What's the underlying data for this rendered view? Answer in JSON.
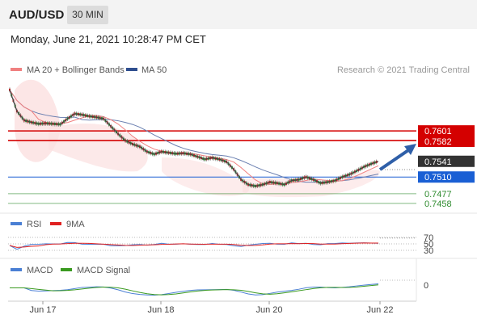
{
  "header": {
    "symbol": "AUD/USD",
    "timeframe": "30 MIN"
  },
  "datetime": "Monday, June 21, 2021 10:28:47 PM CET",
  "main_legend": {
    "ma20": "MA 20 + Bollinger Bands",
    "ma50": "MA 50",
    "credit": "Research © 2021 Trading Central",
    "ma20_color": "#f08080",
    "ma50_color": "#2f4f8f"
  },
  "rsi_legend": {
    "rsi": "RSI",
    "ma": "9MA",
    "rsi_color": "#4a7fd4",
    "ma_color": "#e02020"
  },
  "macd_legend": {
    "macd": "MACD",
    "signal": "MACD Signal",
    "macd_color": "#4a7fd4",
    "signal_color": "#3a9a20"
  },
  "chart_data": {
    "type": "line",
    "title": "",
    "x_ticks": [
      "Jun 17",
      "Jun 18",
      "Jun 20",
      "Jun 22"
    ],
    "price_levels": [
      {
        "label": "0.7601",
        "value": 0.7601,
        "kind": "resistance",
        "color": "#d40000"
      },
      {
        "label": "0.7582",
        "value": 0.7582,
        "kind": "resistance",
        "color": "#d40000"
      },
      {
        "label": "0.7541",
        "value": 0.7541,
        "kind": "last_price",
        "color": "#333333"
      },
      {
        "label": "0.7510",
        "value": 0.751,
        "kind": "pivot",
        "color": "#1a5fd4"
      },
      {
        "label": "0.7477",
        "value": 0.7477,
        "kind": "support",
        "color": "#2e8b2e"
      },
      {
        "label": "0.7458",
        "value": 0.7458,
        "kind": "support",
        "color": "#2e8b2e"
      }
    ],
    "ylim": [
      0.7445,
      0.77
    ],
    "price_series": [
      0.7682,
      0.764,
      0.7622,
      0.7618,
      0.7615,
      0.7616,
      0.7615,
      0.7614,
      0.7625,
      0.7635,
      0.7633,
      0.763,
      0.7628,
      0.7625,
      0.761,
      0.7595,
      0.7582,
      0.7575,
      0.757,
      0.756,
      0.7555,
      0.756,
      0.7558,
      0.7556,
      0.7557,
      0.7555,
      0.755,
      0.7545,
      0.7548,
      0.7545,
      0.754,
      0.7525,
      0.7505,
      0.7495,
      0.7492,
      0.7495,
      0.75,
      0.7498,
      0.7495,
      0.7503,
      0.7505,
      0.751,
      0.7505,
      0.7498,
      0.75,
      0.7503,
      0.751,
      0.7515,
      0.7522,
      0.753,
      0.7536,
      0.7541
    ],
    "rsi_levels": [
      70,
      50,
      30
    ],
    "macd_levels": [
      0
    ]
  }
}
